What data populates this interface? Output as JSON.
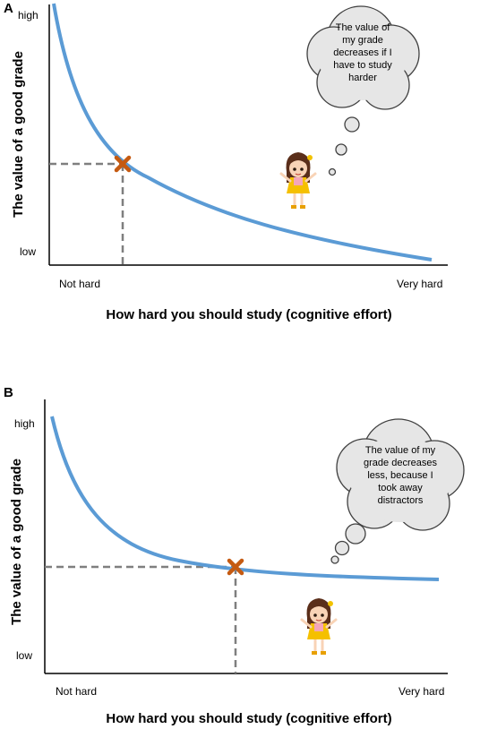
{
  "panels": [
    {
      "letter": "A",
      "y_high": "high",
      "y_low": "low",
      "x_left": "Not hard",
      "x_right": "Very hard",
      "ylabel": "The value of a good grade",
      "xlabel": "How hard you should study (cognitive effort)",
      "thought_lines": [
        "The value of",
        "my grade",
        "decreases if I",
        "have to study",
        "harder"
      ]
    },
    {
      "letter": "B",
      "y_high": "high",
      "y_low": "low",
      "x_left": "Not hard",
      "x_right": "Very hard",
      "ylabel": "The value of a good grade",
      "xlabel": "How hard you should study (cognitive effort)",
      "thought_lines": [
        "The value of my",
        "grade decreases",
        "less, because I",
        "took away",
        "distractors"
      ]
    }
  ],
  "colors": {
    "curve": "#5b9bd5",
    "marker": "#c55a11",
    "dashed": "#7f7f7f",
    "cloud_fill": "#e6e6e6",
    "cloud_stroke": "#404040"
  },
  "icons": [
    "girl-illustration-icon",
    "thought-bubble-icon",
    "x-marker-icon"
  ]
}
